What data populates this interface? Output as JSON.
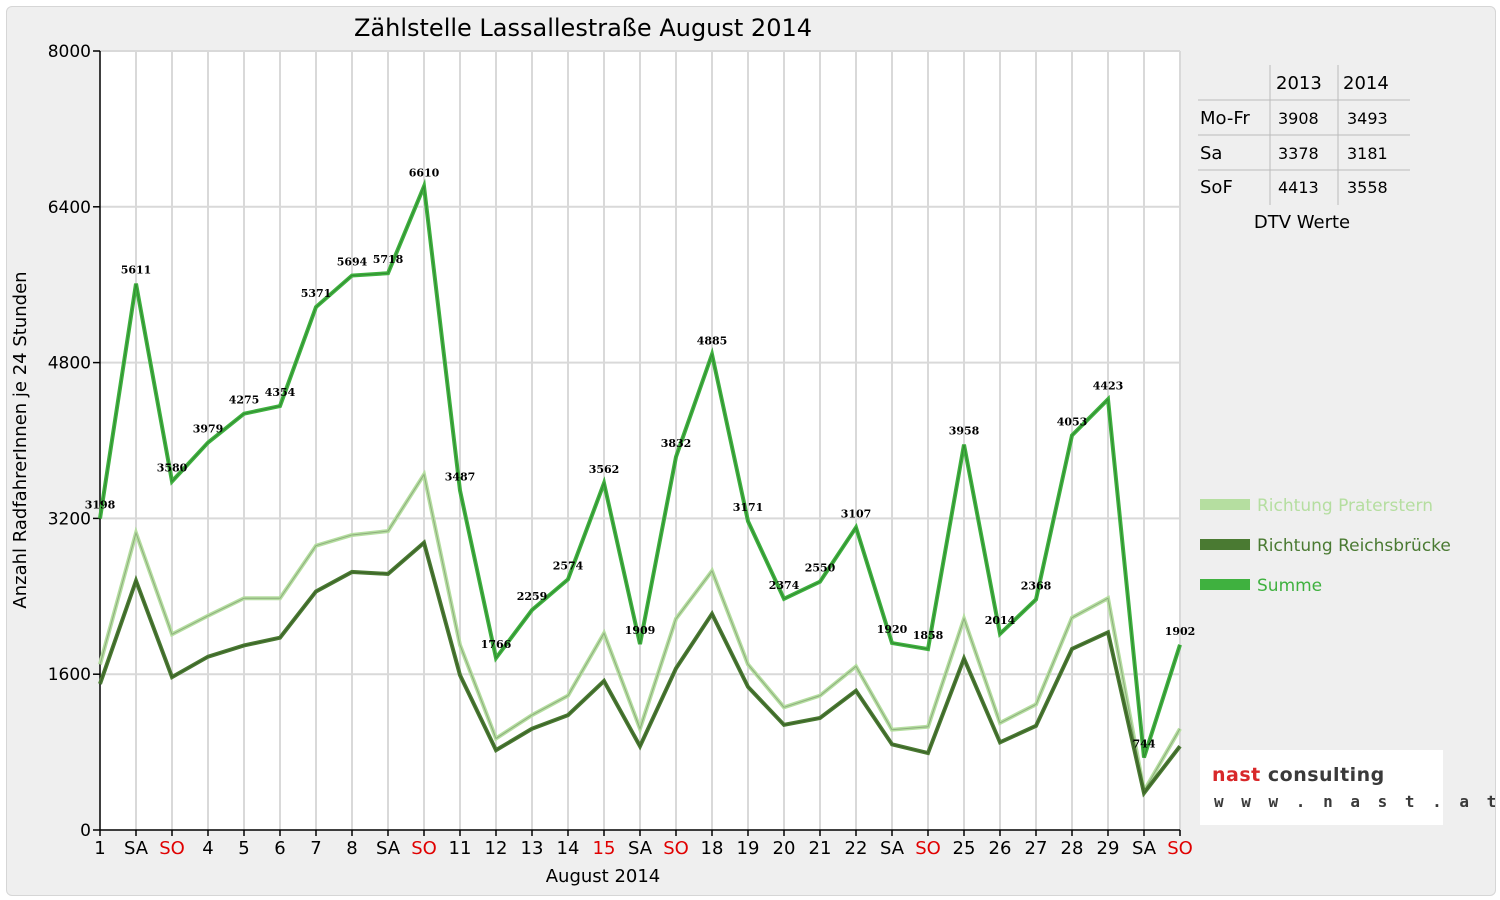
{
  "chart_data": {
    "type": "line",
    "title": "Zählstelle Lassallestraße August 2014",
    "xlabel": "August 2014",
    "ylabel": "Anzahl RadfahrerInnen je 24 Stunden",
    "ylim": [
      0,
      8000
    ],
    "yticks": [
      "0",
      "1600",
      "3200",
      "4800",
      "6400",
      "8000"
    ],
    "categories": [
      "1",
      "SA",
      "SO",
      "4",
      "5",
      "6",
      "7",
      "8",
      "SA",
      "SO",
      "11",
      "12",
      "13",
      "14",
      "15",
      "SA",
      "SO",
      "18",
      "19",
      "20",
      "21",
      "22",
      "SA",
      "SO",
      "25",
      "26",
      "27",
      "28",
      "29",
      "SA",
      "SO"
    ],
    "category_colors": [
      "#000000",
      "#000000",
      "#e00000",
      "#000000",
      "#000000",
      "#000000",
      "#000000",
      "#000000",
      "#000000",
      "#e00000",
      "#000000",
      "#000000",
      "#000000",
      "#000000",
      "#e00000",
      "#000000",
      "#e00000",
      "#000000",
      "#000000",
      "#000000",
      "#000000",
      "#000000",
      "#000000",
      "#e00000",
      "#000000",
      "#000000",
      "#000000",
      "#000000",
      "#000000",
      "#000000",
      "#e00000"
    ],
    "series": [
      {
        "name": "Richtung Praterstern",
        "color": "#b5dea0",
        "values": [
          1700,
          3050,
          2010,
          2200,
          2380,
          2380,
          2920,
          3030,
          3070,
          3650,
          1900,
          940,
          1180,
          1380,
          2020,
          1040,
          2170,
          2660,
          1700,
          1260,
          1380,
          1680,
          1030,
          1060,
          2170,
          1100,
          1290,
          2180,
          2380,
          400,
          1040
        ]
      },
      {
        "name": "Richtung Reichsbrücke",
        "color": "#4a7a32",
        "values": [
          1500,
          2560,
          1570,
          1780,
          1895,
          1975,
          2450,
          2650,
          2630,
          2950,
          1590,
          820,
          1040,
          1180,
          1530,
          860,
          1660,
          2220,
          1470,
          1080,
          1150,
          1430,
          880,
          790,
          1760,
          900,
          1070,
          1860,
          2030,
          380,
          860
        ]
      },
      {
        "name": "Summe",
        "color": "#3fb13f",
        "values": [
          3198,
          5611,
          3580,
          3979,
          4275,
          4354,
          5371,
          5694,
          5718,
          6610,
          3487,
          1766,
          2259,
          2574,
          3562,
          1909,
          3832,
          4885,
          3171,
          2374,
          2550,
          3107,
          1920,
          1858,
          3958,
          2014,
          2368,
          4053,
          4423,
          744,
          1902
        ]
      }
    ],
    "data_labels": [
      "3198",
      "5611",
      "3580",
      "3979",
      "4275",
      "4354",
      "5371",
      "5694",
      "5718",
      "6610",
      "3487",
      "1766",
      "2259",
      "2574",
      "3562",
      "1909",
      "3832",
      "4885",
      "3171",
      "2374",
      "2550",
      "3107",
      "1920",
      "1858",
      "3958",
      "2014",
      "2368",
      "4053",
      "4423",
      "744",
      "1902"
    ],
    "legend_position": "right",
    "grid": true
  },
  "dtv_table": {
    "caption": "DTV Werte",
    "columns": [
      "2013",
      "2014"
    ],
    "rows": [
      {
        "label": "Mo-Fr",
        "v2013": "3908",
        "v2014": "3493"
      },
      {
        "label": "Sa",
        "v2013": "3378",
        "v2014": "3181"
      },
      {
        "label": "SoF",
        "v2013": "4413",
        "v2014": "3558"
      }
    ]
  },
  "logo": {
    "brand_part1": "nast",
    "brand_part2": "consulting",
    "url": "w w w . n a s t . a t"
  }
}
